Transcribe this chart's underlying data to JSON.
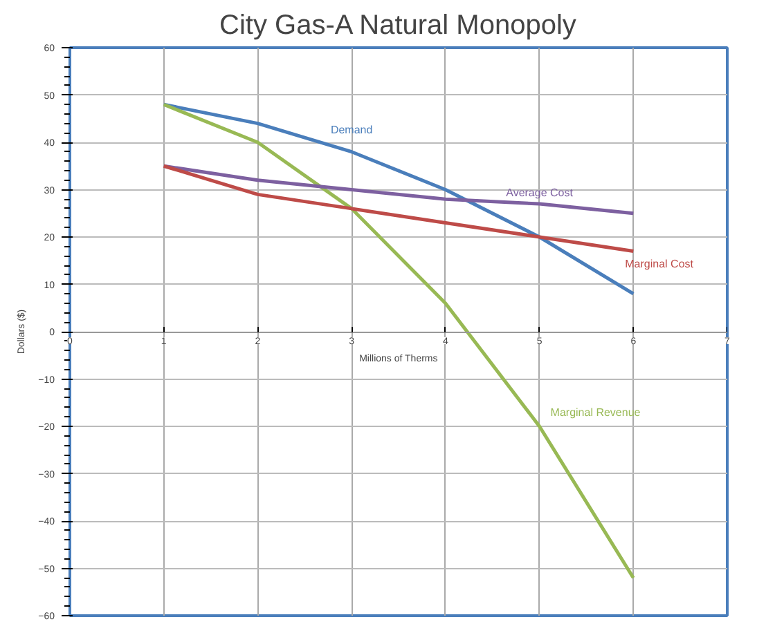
{
  "chart_data": {
    "type": "line",
    "title": "City Gas-A Natural Monopoly",
    "xlabel": "Millions of Therms",
    "ylabel": "Dollars ($)",
    "x": [
      1,
      2,
      3,
      4,
      5,
      6
    ],
    "series": [
      {
        "name": "Demand",
        "color": "#4a7ebb",
        "values": [
          48,
          44,
          38,
          30,
          20,
          8
        ]
      },
      {
        "name": "Marginal Revenue",
        "color": "#98b954",
        "values": [
          48,
          40,
          26,
          6,
          -20,
          -52
        ]
      },
      {
        "name": "Average Cost",
        "color": "#7d60a0",
        "values": [
          35,
          32,
          30,
          28,
          27,
          25
        ]
      },
      {
        "name": "Marginal Cost",
        "color": "#be4b48",
        "values": [
          35,
          29,
          26,
          23,
          20,
          17
        ]
      }
    ],
    "xlim": [
      0,
      7
    ],
    "ylim": [
      -60,
      60
    ],
    "xticks": [
      0,
      1,
      2,
      3,
      4,
      5,
      6,
      7
    ],
    "yticks": [
      -60,
      -50,
      -40,
      -30,
      -20,
      -10,
      0,
      10,
      20,
      30,
      40,
      50,
      60
    ],
    "grid": true,
    "marker": "none",
    "line_style": "solid"
  }
}
